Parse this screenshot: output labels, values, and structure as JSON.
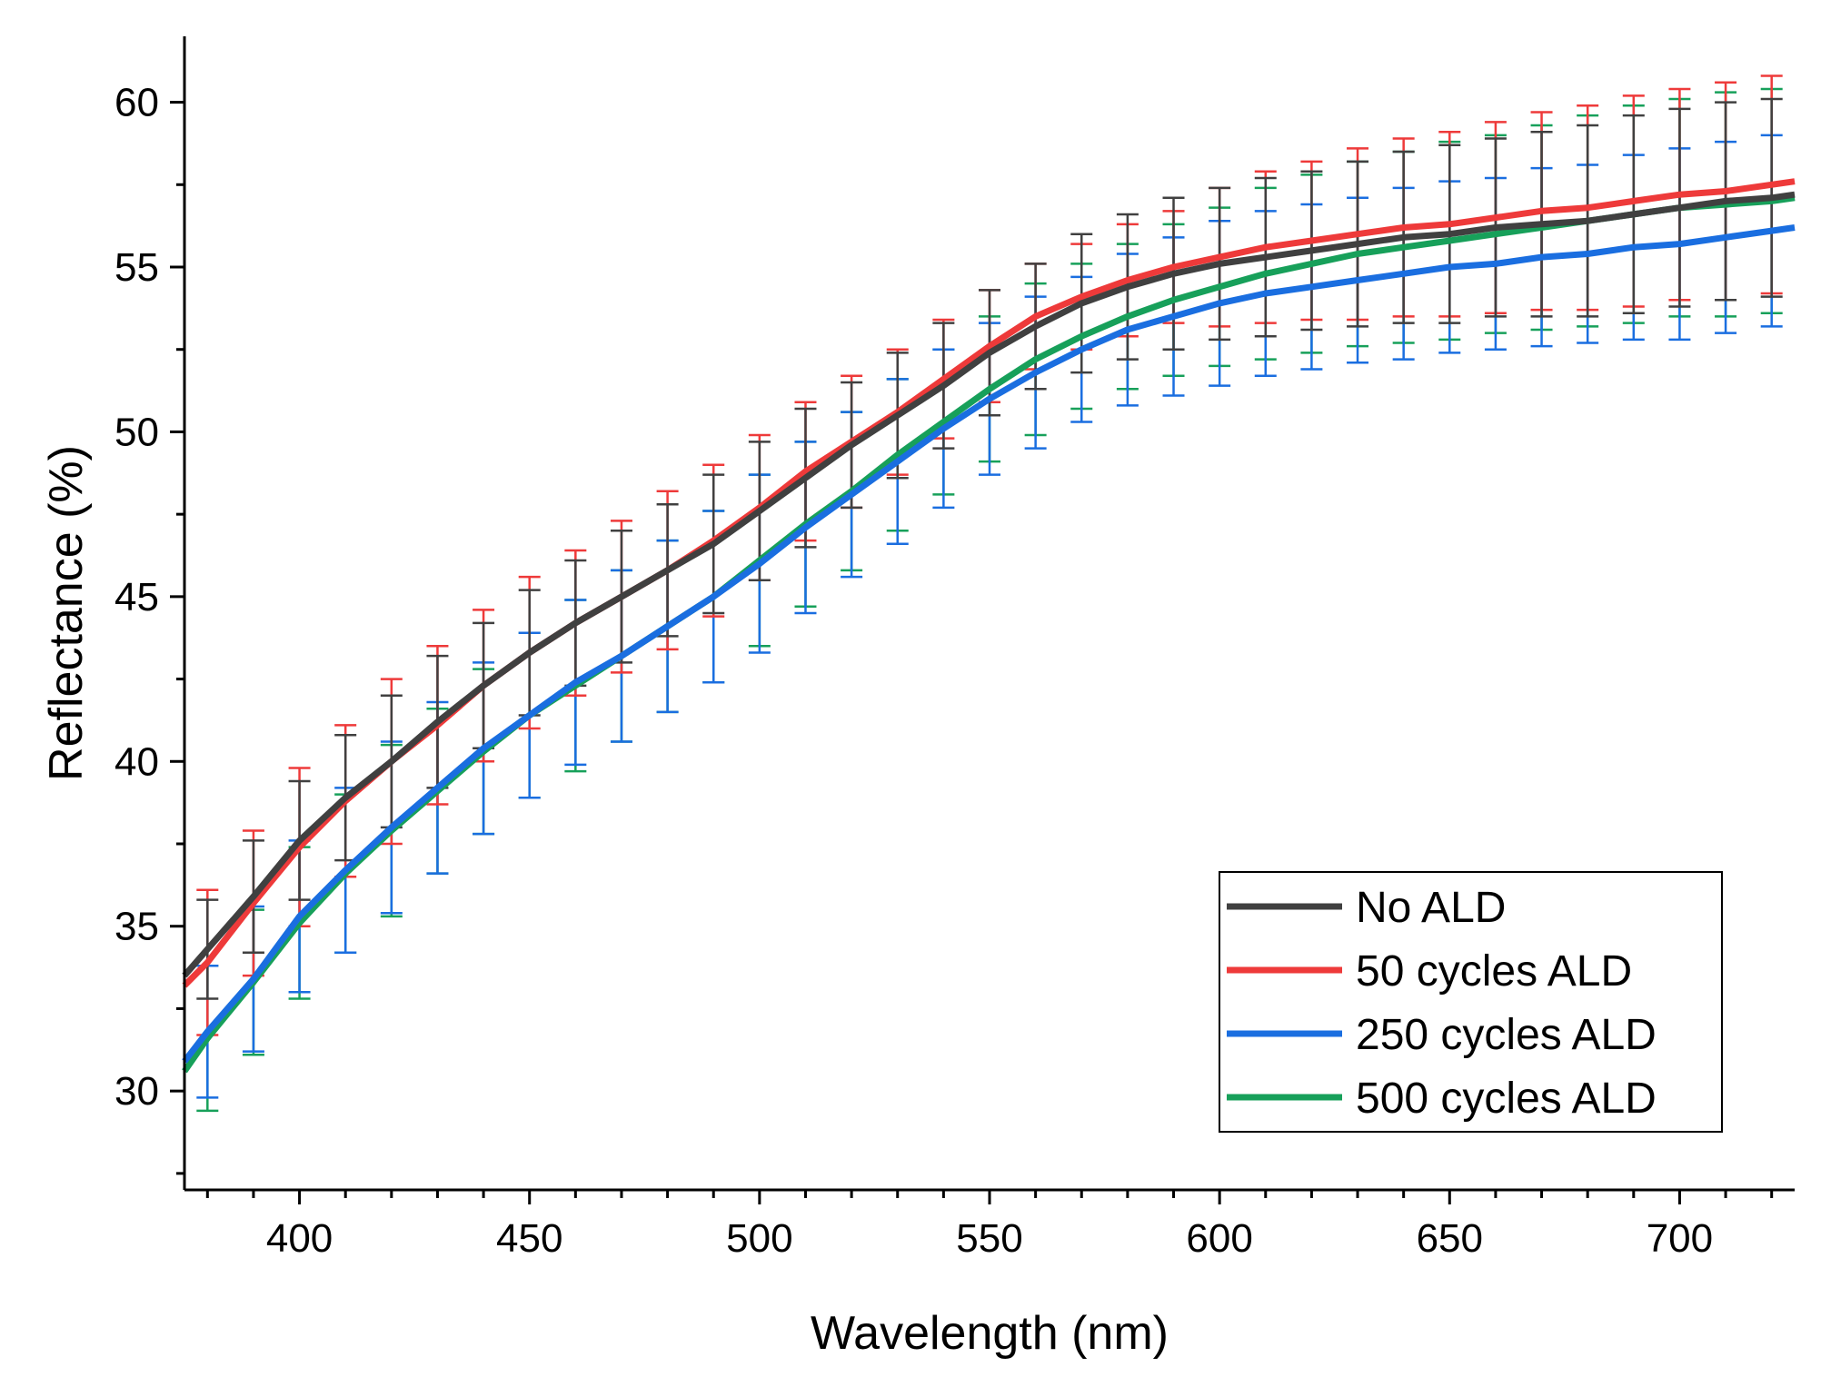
{
  "chart_data": {
    "type": "line",
    "title": "",
    "xlabel": "Wavelength (nm)",
    "ylabel": "Reflectance (%)",
    "xlim": [
      375,
      725
    ],
    "ylim": [
      27,
      62
    ],
    "xticks": [
      400,
      450,
      500,
      550,
      600,
      650,
      700
    ],
    "yticks": [
      30,
      35,
      40,
      45,
      50,
      55,
      60
    ],
    "x_minor_step": 10,
    "y_minor_step": 2.5,
    "grid": false,
    "legend_position": "bottom-right",
    "x": [
      375,
      380,
      390,
      400,
      410,
      420,
      430,
      440,
      450,
      460,
      470,
      480,
      490,
      500,
      510,
      520,
      530,
      540,
      550,
      560,
      570,
      580,
      590,
      600,
      610,
      620,
      630,
      640,
      650,
      660,
      670,
      680,
      690,
      700,
      710,
      720,
      725
    ],
    "error_x": [
      380,
      390,
      400,
      410,
      420,
      430,
      440,
      450,
      460,
      470,
      480,
      490,
      500,
      510,
      520,
      530,
      540,
      550,
      560,
      570,
      580,
      590,
      600,
      610,
      620,
      630,
      640,
      650,
      660,
      670,
      680,
      690,
      700,
      710,
      720
    ],
    "series": [
      {
        "name": "No ALD",
        "color": "#404040",
        "values": [
          33.5,
          34.3,
          35.9,
          37.6,
          38.9,
          40.0,
          41.2,
          42.3,
          43.3,
          44.2,
          45.0,
          45.8,
          46.6,
          47.6,
          48.6,
          49.6,
          50.5,
          51.4,
          52.4,
          53.2,
          53.9,
          54.4,
          54.8,
          55.1,
          55.3,
          55.5,
          55.7,
          55.9,
          56.0,
          56.2,
          56.3,
          56.4,
          56.6,
          56.8,
          57.0,
          57.1,
          57.2
        ],
        "errors": [
          1.5,
          1.7,
          1.8,
          1.9,
          2.0,
          2.0,
          1.9,
          1.9,
          1.9,
          2.0,
          2.0,
          2.1,
          2.1,
          2.1,
          1.9,
          1.9,
          1.9,
          1.9,
          1.9,
          2.1,
          2.2,
          2.3,
          2.3,
          2.4,
          2.4,
          2.5,
          2.6,
          2.7,
          2.7,
          2.8,
          2.9,
          3.0,
          3.0,
          3.0,
          3.0
        ]
      },
      {
        "name": "50 cycles ALD",
        "color": "#ee3a3a",
        "values": [
          33.2,
          33.9,
          35.7,
          37.4,
          38.8,
          40.0,
          41.1,
          42.3,
          43.3,
          44.2,
          45.0,
          45.8,
          46.7,
          47.7,
          48.8,
          49.7,
          50.6,
          51.6,
          52.6,
          53.5,
          54.1,
          54.6,
          55.0,
          55.3,
          55.6,
          55.8,
          56.0,
          56.2,
          56.3,
          56.5,
          56.7,
          56.8,
          57.0,
          57.2,
          57.3,
          57.5,
          57.6
        ],
        "errors": [
          2.2,
          2.2,
          2.4,
          2.3,
          2.5,
          2.4,
          2.3,
          2.3,
          2.2,
          2.3,
          2.4,
          2.3,
          2.2,
          2.1,
          2.0,
          1.9,
          1.8,
          1.7,
          1.6,
          1.6,
          1.7,
          1.7,
          2.1,
          2.3,
          2.4,
          2.6,
          2.7,
          2.8,
          2.9,
          3.0,
          3.1,
          3.2,
          3.2,
          3.3,
          3.3
        ]
      },
      {
        "name": "250 cycles ALD",
        "color": "#1a6ee0",
        "values": [
          30.9,
          31.8,
          33.4,
          35.3,
          36.7,
          38.0,
          39.2,
          40.4,
          41.4,
          42.4,
          43.2,
          44.1,
          45.0,
          46.0,
          47.1,
          48.1,
          49.1,
          50.1,
          51.0,
          51.8,
          52.5,
          53.1,
          53.5,
          53.9,
          54.2,
          54.4,
          54.6,
          54.8,
          55.0,
          55.1,
          55.3,
          55.4,
          55.6,
          55.7,
          55.9,
          56.1,
          56.2
        ],
        "errors": [
          2.0,
          2.2,
          2.3,
          2.5,
          2.6,
          2.6,
          2.6,
          2.5,
          2.5,
          2.6,
          2.6,
          2.6,
          2.7,
          2.6,
          2.5,
          2.5,
          2.4,
          2.3,
          2.3,
          2.2,
          2.3,
          2.4,
          2.5,
          2.5,
          2.5,
          2.5,
          2.6,
          2.6,
          2.6,
          2.7,
          2.7,
          2.8,
          2.9,
          2.9,
          2.9
        ]
      },
      {
        "name": "500 cycles ALD",
        "color": "#17a05a",
        "values": [
          30.6,
          31.6,
          33.3,
          35.1,
          36.6,
          37.9,
          39.1,
          40.3,
          41.4,
          42.3,
          43.2,
          44.1,
          45.0,
          46.1,
          47.2,
          48.2,
          49.3,
          50.3,
          51.3,
          52.2,
          52.9,
          53.5,
          54.0,
          54.4,
          54.8,
          55.1,
          55.4,
          55.6,
          55.8,
          56.0,
          56.2,
          56.4,
          56.6,
          56.8,
          56.9,
          57.0,
          57.1
        ],
        "errors": [
          2.2,
          2.2,
          2.3,
          2.4,
          2.6,
          2.5,
          2.5,
          2.5,
          2.6,
          2.6,
          2.6,
          2.6,
          2.6,
          2.5,
          2.4,
          2.3,
          2.2,
          2.2,
          2.3,
          2.2,
          2.2,
          2.3,
          2.4,
          2.6,
          2.7,
          2.8,
          2.9,
          3.0,
          3.0,
          3.1,
          3.2,
          3.3,
          3.3,
          3.4,
          3.4
        ]
      }
    ]
  }
}
